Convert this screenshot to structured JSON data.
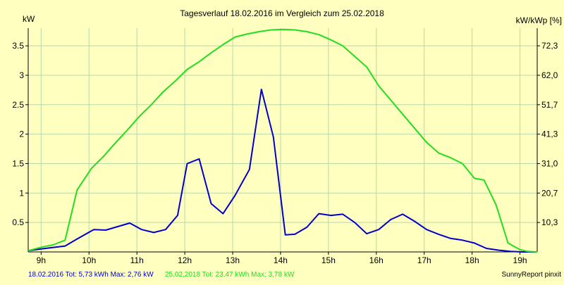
{
  "colors": {
    "background": "#ffffc0",
    "grid": "#b8d8a8",
    "axis": "#000000",
    "series_2016": "#0000cc",
    "series_2018": "#22dd22",
    "text": "#000000"
  },
  "chart_data": {
    "type": "line",
    "title": "Tagesverlauf 18.02.2016 im Vergleich zum 25.02.2018",
    "ylabel_left": "kW",
    "ylabel_right": "kW/kWp [%]",
    "xlim": [
      8.73,
      19.36
    ],
    "ylim": [
      0,
      3.8
    ],
    "grid": true,
    "x_ticks": [
      {
        "value": 9,
        "label": "9h"
      },
      {
        "value": 10,
        "label": "10h"
      },
      {
        "value": 11,
        "label": "11h"
      },
      {
        "value": 12,
        "label": "12h"
      },
      {
        "value": 13,
        "label": "13h"
      },
      {
        "value": 14,
        "label": "14h"
      },
      {
        "value": 15,
        "label": "15h"
      },
      {
        "value": 16,
        "label": "16h"
      },
      {
        "value": 17,
        "label": "17h"
      },
      {
        "value": 18,
        "label": "18h"
      },
      {
        "value": 19,
        "label": "19h"
      }
    ],
    "y_ticks_left": [
      {
        "value": 0.5,
        "label": "0.5"
      },
      {
        "value": 1,
        "label": "1"
      },
      {
        "value": 1.5,
        "label": "1.5"
      },
      {
        "value": 2,
        "label": "2"
      },
      {
        "value": 2.5,
        "label": "2.5"
      },
      {
        "value": 3,
        "label": "3"
      },
      {
        "value": 3.5,
        "label": "3.5"
      }
    ],
    "y_ticks_right": [
      {
        "value": 0.5,
        "label": "10,3"
      },
      {
        "value": 1,
        "label": "20,7"
      },
      {
        "value": 1.5,
        "label": "31,0"
      },
      {
        "value": 2,
        "label": "41,3"
      },
      {
        "value": 2.5,
        "label": "51,7"
      },
      {
        "value": 3,
        "label": "62,0"
      },
      {
        "value": 3.5,
        "label": "72,3"
      }
    ],
    "series": [
      {
        "key": "s2016",
        "color": "#0000cc",
        "points": [
          [
            8.73,
            0.02
          ],
          [
            9.0,
            0.05
          ],
          [
            9.3,
            0.08
          ],
          [
            9.5,
            0.1
          ],
          [
            9.75,
            0.22
          ],
          [
            10.1,
            0.38
          ],
          [
            10.35,
            0.37
          ],
          [
            10.6,
            0.43
          ],
          [
            10.85,
            0.49
          ],
          [
            11.1,
            0.38
          ],
          [
            11.35,
            0.33
          ],
          [
            11.6,
            0.38
          ],
          [
            11.85,
            0.62
          ],
          [
            12.05,
            1.5
          ],
          [
            12.3,
            1.58
          ],
          [
            12.55,
            0.82
          ],
          [
            12.8,
            0.65
          ],
          [
            13.05,
            0.96
          ],
          [
            13.35,
            1.4
          ],
          [
            13.6,
            2.76
          ],
          [
            13.85,
            1.95
          ],
          [
            14.1,
            0.29
          ],
          [
            14.3,
            0.3
          ],
          [
            14.55,
            0.42
          ],
          [
            14.8,
            0.65
          ],
          [
            15.05,
            0.62
          ],
          [
            15.3,
            0.64
          ],
          [
            15.55,
            0.5
          ],
          [
            15.8,
            0.31
          ],
          [
            16.05,
            0.38
          ],
          [
            16.3,
            0.55
          ],
          [
            16.55,
            0.64
          ],
          [
            16.8,
            0.52
          ],
          [
            17.05,
            0.38
          ],
          [
            17.3,
            0.3
          ],
          [
            17.55,
            0.23
          ],
          [
            17.8,
            0.2
          ],
          [
            18.05,
            0.15
          ],
          [
            18.3,
            0.06
          ],
          [
            18.55,
            0.03
          ],
          [
            18.8,
            0.01
          ],
          [
            19.05,
            0.0
          ],
          [
            19.36,
            0.0
          ]
        ]
      },
      {
        "key": "s2018",
        "color": "#22dd22",
        "points": [
          [
            8.73,
            0.02
          ],
          [
            9.0,
            0.08
          ],
          [
            9.25,
            0.12
          ],
          [
            9.5,
            0.2
          ],
          [
            9.75,
            1.05
          ],
          [
            10.05,
            1.42
          ],
          [
            10.3,
            1.62
          ],
          [
            10.55,
            1.85
          ],
          [
            10.8,
            2.07
          ],
          [
            11.05,
            2.3
          ],
          [
            11.3,
            2.5
          ],
          [
            11.55,
            2.72
          ],
          [
            11.8,
            2.9
          ],
          [
            12.05,
            3.1
          ],
          [
            12.3,
            3.23
          ],
          [
            12.55,
            3.38
          ],
          [
            12.8,
            3.52
          ],
          [
            13.05,
            3.65
          ],
          [
            13.3,
            3.7
          ],
          [
            13.55,
            3.74
          ],
          [
            13.8,
            3.77
          ],
          [
            14.05,
            3.78
          ],
          [
            14.3,
            3.77
          ],
          [
            14.55,
            3.74
          ],
          [
            14.8,
            3.69
          ],
          [
            15.05,
            3.6
          ],
          [
            15.3,
            3.5
          ],
          [
            15.55,
            3.32
          ],
          [
            15.8,
            3.14
          ],
          [
            16.05,
            2.82
          ],
          [
            16.3,
            2.58
          ],
          [
            16.55,
            2.34
          ],
          [
            16.8,
            2.1
          ],
          [
            17.05,
            1.86
          ],
          [
            17.3,
            1.68
          ],
          [
            17.55,
            1.6
          ],
          [
            17.8,
            1.5
          ],
          [
            18.05,
            1.25
          ],
          [
            18.25,
            1.22
          ],
          [
            18.5,
            0.8
          ],
          [
            18.75,
            0.15
          ],
          [
            19.0,
            0.04
          ],
          [
            19.15,
            0.01
          ],
          [
            19.36,
            0.0
          ]
        ]
      }
    ]
  },
  "footer": {
    "legend_2016": "18.02.2016 Tot: 5,73 kWh Max: 2,76 kW",
    "legend_2018": "25.02.2018 Tot: 23,47 kWh Max: 3,78 kW",
    "brand": "SunnyReport pinxit"
  }
}
